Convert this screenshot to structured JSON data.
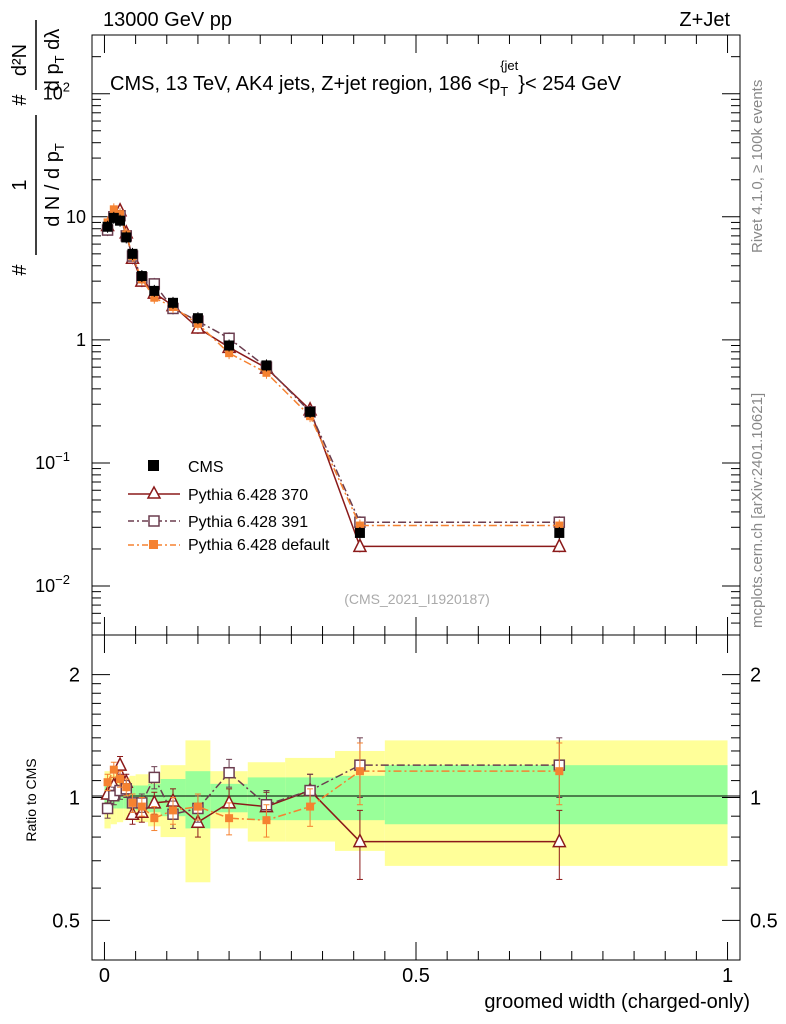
{
  "header": {
    "left": "13000 GeV pp",
    "right": "Z+Jet"
  },
  "side_labels": {
    "rivet": "Rivet 4.1.0, ≥ 100k events",
    "mcplots": "mcplots.cern.ch [arXiv:2401.10621]"
  },
  "chart_data": [
    {
      "type": "line",
      "title": "CMS, 13 TeV, AK4 jets, Z+jet region, 186 <p_T^{jet}< 254 GeV",
      "title_text": "CMS, 13 TeV, AK4 jets, Z+jet region, 186 <p",
      "title_sub": "T",
      "title_sup": "{jet",
      "title_close": "}",
      "title_tail": "< 254 GeV",
      "analysis_id": "(CMS_2021_I1920187)",
      "ylabel": "1/N dN/dp_T d²N/(dp_T dλ)",
      "ylabel_parts": [
        "#",
        "1",
        "d N / d p",
        "T",
        "#",
        "d p",
        "T",
        "d²N",
        "dλ"
      ],
      "yscale": "log",
      "ylim": [
        0.004,
        300
      ],
      "xlim": [
        -0.02,
        1.02
      ],
      "y_ticks": [
        {
          "value": 0.01,
          "label": "10",
          "exp": "−2"
        },
        {
          "value": 0.1,
          "label": "10",
          "exp": "−1"
        },
        {
          "value": 1,
          "label": "1",
          "exp": ""
        },
        {
          "value": 10,
          "label": "10",
          "exp": ""
        },
        {
          "value": 100,
          "label": "10",
          "exp": "2"
        }
      ],
      "legend_position": "center-left",
      "series": [
        {
          "name": "CMS",
          "style": "data",
          "x": [
            0.005,
            0.015,
            0.025,
            0.035,
            0.045,
            0.06,
            0.08,
            0.11,
            0.15,
            0.2,
            0.26,
            0.33,
            0.41,
            0.73
          ],
          "y": [
            8.3,
            9.8,
            9.3,
            6.8,
            5.0,
            3.3,
            2.5,
            2.0,
            1.5,
            0.9,
            0.62,
            0.26,
            0.027,
            0.027
          ]
        },
        {
          "name": "Pythia 6.428 370",
          "style": "triangle",
          "x": [
            0.005,
            0.015,
            0.025,
            0.035,
            0.045,
            0.06,
            0.08,
            0.11,
            0.15,
            0.2,
            0.26,
            0.33,
            0.41,
            0.73
          ],
          "y": [
            8.5,
            10.5,
            11.2,
            7.4,
            4.6,
            3.0,
            2.4,
            1.9,
            1.25,
            0.87,
            0.59,
            0.27,
            0.021,
            0.021
          ]
        },
        {
          "name": "Pythia 6.428 391",
          "style": "square-open",
          "x": [
            0.005,
            0.015,
            0.025,
            0.035,
            0.045,
            0.06,
            0.08,
            0.11,
            0.15,
            0.2,
            0.26,
            0.33,
            0.41,
            0.73
          ],
          "y": [
            7.8,
            10.0,
            10.2,
            7.0,
            4.8,
            3.2,
            2.85,
            1.8,
            1.42,
            1.03,
            0.6,
            0.26,
            0.033,
            0.033
          ]
        },
        {
          "name": "Pythia 6.428 default",
          "style": "square-filled",
          "x": [
            0.005,
            0.015,
            0.025,
            0.035,
            0.045,
            0.06,
            0.08,
            0.11,
            0.15,
            0.2,
            0.26,
            0.33,
            0.41,
            0.73
          ],
          "y": [
            9.0,
            11.5,
            10.5,
            7.2,
            4.8,
            3.1,
            2.2,
            1.85,
            1.35,
            0.78,
            0.54,
            0.24,
            0.031,
            0.031
          ]
        }
      ]
    },
    {
      "type": "line",
      "title": "",
      "ylabel": "Ratio to CMS",
      "xlabel": "groomed width (charged-only)",
      "yscale": "log",
      "ylim": [
        0.4,
        2.5
      ],
      "xlim": [
        -0.02,
        1.02
      ],
      "y_ticks": [
        {
          "value": 0.5,
          "label": "0.5"
        },
        {
          "value": 1,
          "label": "1"
        },
        {
          "value": 2,
          "label": "2"
        }
      ],
      "x_ticks": [
        {
          "value": 0,
          "label": "0"
        },
        {
          "value": 0.5,
          "label": "0.5"
        },
        {
          "value": 1,
          "label": "1"
        }
      ],
      "bands": {
        "bin_edges": [
          0,
          0.01,
          0.02,
          0.03,
          0.04,
          0.05,
          0.07,
          0.09,
          0.13,
          0.17,
          0.23,
          0.29,
          0.37,
          0.45,
          1.0
        ],
        "inner": [
          [
            0.93,
            1.07
          ],
          [
            0.94,
            1.06
          ],
          [
            0.94,
            1.06
          ],
          [
            0.94,
            1.06
          ],
          [
            0.94,
            1.07
          ],
          [
            0.93,
            1.07
          ],
          [
            0.92,
            1.08
          ],
          [
            0.9,
            1.11
          ],
          [
            0.84,
            1.16
          ],
          [
            0.92,
            1.08
          ],
          [
            0.88,
            1.12
          ],
          [
            0.88,
            1.12
          ],
          [
            0.88,
            1.13
          ],
          [
            0.86,
            1.2
          ]
        ],
        "outer": [
          [
            0.84,
            1.16
          ],
          [
            0.86,
            1.14
          ],
          [
            0.87,
            1.13
          ],
          [
            0.88,
            1.12
          ],
          [
            0.88,
            1.13
          ],
          [
            0.87,
            1.14
          ],
          [
            0.85,
            1.15
          ],
          [
            0.8,
            1.2
          ],
          [
            0.62,
            1.38
          ],
          [
            0.84,
            1.16
          ],
          [
            0.78,
            1.22
          ],
          [
            0.78,
            1.25
          ],
          [
            0.74,
            1.3
          ],
          [
            0.68,
            1.38
          ]
        ]
      },
      "series": [
        {
          "name": "Pythia 6.428 370",
          "style": "triangle",
          "x": [
            0.005,
            0.015,
            0.025,
            0.035,
            0.045,
            0.06,
            0.08,
            0.11,
            0.15,
            0.2,
            0.26,
            0.33,
            0.41,
            0.73
          ],
          "y": [
            1.02,
            1.07,
            1.2,
            1.09,
            0.91,
            0.92,
            0.97,
            0.98,
            0.87,
            0.97,
            0.95,
            1.04,
            0.78,
            0.78
          ],
          "err": [
            0.05,
            0.05,
            0.06,
            0.05,
            0.05,
            0.05,
            0.06,
            0.07,
            0.07,
            0.08,
            0.08,
            0.1,
            0.15,
            0.15
          ]
        },
        {
          "name": "Pythia 6.428 391",
          "style": "square-open",
          "x": [
            0.005,
            0.015,
            0.025,
            0.035,
            0.045,
            0.06,
            0.08,
            0.11,
            0.15,
            0.2,
            0.26,
            0.33,
            0.41,
            0.73
          ],
          "y": [
            0.94,
            1.01,
            1.04,
            1.05,
            0.97,
            0.97,
            1.12,
            0.91,
            0.94,
            1.15,
            0.96,
            1.04,
            1.2,
            1.2
          ],
          "err": [
            0.05,
            0.05,
            0.05,
            0.05,
            0.05,
            0.05,
            0.07,
            0.07,
            0.07,
            0.09,
            0.08,
            0.1,
            0.2,
            0.2
          ]
        },
        {
          "name": "Pythia 6.428 default",
          "style": "square-filled",
          "x": [
            0.005,
            0.015,
            0.025,
            0.035,
            0.045,
            0.06,
            0.08,
            0.11,
            0.15,
            0.2,
            0.26,
            0.33,
            0.41,
            0.73
          ],
          "y": [
            1.09,
            1.17,
            1.11,
            1.06,
            0.97,
            0.95,
            0.89,
            0.93,
            0.95,
            0.89,
            0.88,
            0.95,
            1.16,
            1.16
          ],
          "err": [
            0.05,
            0.05,
            0.05,
            0.05,
            0.05,
            0.05,
            0.06,
            0.07,
            0.07,
            0.08,
            0.08,
            0.1,
            0.2,
            0.2
          ]
        }
      ]
    }
  ],
  "colors": {
    "data": "#000000",
    "p370": "#8b1a1a",
    "p391": "#6b3d4f",
    "pdefault": "#f58231",
    "band_inner": "#99ff99",
    "band_outer": "#ffff99"
  }
}
